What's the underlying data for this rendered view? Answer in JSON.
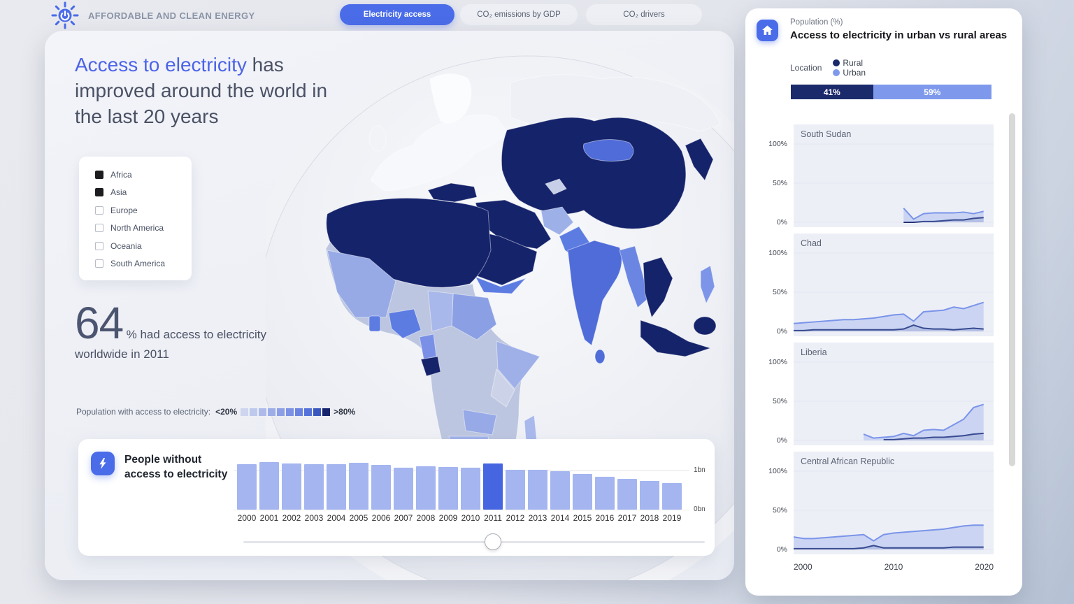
{
  "header": {
    "logo_icon": "sun-power-icon",
    "app_title": "AFFORDABLE AND CLEAN ENERGY",
    "tabs": [
      {
        "label": "Electricity access",
        "active": true
      },
      {
        "label": "CO₂ emissions by GDP",
        "active": false
      },
      {
        "label": "CO₂ drivers",
        "active": false
      }
    ]
  },
  "main": {
    "headline": {
      "highlight": "Access to electricity",
      "rest": " has improved around the world in the last 20 years"
    },
    "continent_filter": {
      "items": [
        {
          "label": "Africa",
          "checked": true
        },
        {
          "label": "Asia",
          "checked": true
        },
        {
          "label": "Europe",
          "checked": false
        },
        {
          "label": "North America",
          "checked": false
        },
        {
          "label": "Oceania",
          "checked": false
        },
        {
          "label": "South America",
          "checked": false
        }
      ]
    },
    "stat": {
      "value": "64",
      "suffix": "% had access to electricity",
      "line2": "worldwide in 2011"
    },
    "color_scale": {
      "label": "Population with access to electricity:",
      "min_label": "<20%",
      "max_label": ">80%",
      "colors": [
        "#ced5ee",
        "#bec9ec",
        "#aebbea",
        "#9dade8",
        "#8c9fe6",
        "#7b91e4",
        "#6a83e1",
        "#5472da",
        "#3a57c0",
        "#16246e"
      ]
    },
    "map": {
      "type": "choropleth-globe",
      "highlighted_continents": [
        "Africa",
        "Asia"
      ],
      "deselected_color": "#f4f5f9",
      "low_access_color": "#ced5ee",
      "high_access_color": "#101c60"
    }
  },
  "bottom_card": {
    "icon": "lightning-icon",
    "title_line1": "People without",
    "title_line2": "access to electricity",
    "slider": {
      "selected_year": "2011"
    }
  },
  "right_panel": {
    "home_icon": "home-icon",
    "subtitle": "Population (%)",
    "title": "Access to electricity in urban vs rural areas",
    "legend": {
      "label": "Location",
      "items": [
        {
          "label": "Rural",
          "color": "#1b2a6b"
        },
        {
          "label": "Urban",
          "color": "#7e99ec"
        }
      ]
    },
    "x_axis_labels": [
      "2000",
      "2010",
      "2020"
    ],
    "y_tick_labels": [
      "100%",
      "50%",
      "0%"
    ]
  },
  "chart_data": [
    {
      "type": "bar",
      "title": "People without access to electricity",
      "categories": [
        "2000",
        "2001",
        "2002",
        "2003",
        "2004",
        "2005",
        "2006",
        "2007",
        "2008",
        "2009",
        "2010",
        "2011",
        "2012",
        "2013",
        "2014",
        "2015",
        "2016",
        "2017",
        "2018",
        "2019"
      ],
      "values_bn": [
        1.16,
        1.21,
        1.18,
        1.16,
        1.16,
        1.2,
        1.14,
        1.07,
        1.11,
        1.09,
        1.07,
        1.18,
        1.02,
        1.02,
        0.98,
        0.91,
        0.84,
        0.79,
        0.73,
        0.68
      ],
      "highlighted_category": "2011",
      "y_axis_labels": [
        "1bn",
        "0bn"
      ],
      "ylim_bn": [
        0,
        1.25
      ],
      "bar_color": "#a4b5f0",
      "highlight_color": "#4566e0"
    },
    {
      "type": "bar",
      "subtype": "stacked-100",
      "title": "Access to electricity in urban vs rural areas",
      "series": [
        {
          "name": "Rural",
          "value_pct": 41,
          "color": "#1b2a6b"
        },
        {
          "name": "Urban",
          "value_pct": 59,
          "color": "#7e99ec"
        }
      ]
    },
    {
      "type": "area",
      "title": "South Sudan",
      "x_range": [
        2000,
        2020
      ],
      "ylim_pct": [
        0,
        100
      ],
      "series": [
        {
          "name": "Urban",
          "start_year": 2011,
          "values_pct": [
            18,
            4,
            11,
            12,
            12,
            12,
            13,
            11,
            14
          ]
        },
        {
          "name": "Rural",
          "start_year": 2011,
          "values_pct": [
            0,
            0,
            1,
            1,
            2,
            3,
            3,
            5,
            6
          ]
        }
      ]
    },
    {
      "type": "area",
      "title": "Chad",
      "x_range": [
        2000,
        2020
      ],
      "ylim_pct": [
        0,
        100
      ],
      "series": [
        {
          "name": "Urban",
          "start_year": 2000,
          "values_pct": [
            10,
            11,
            12,
            13,
            14,
            15,
            15,
            16,
            17,
            19,
            21,
            22,
            13,
            25,
            26,
            27,
            31,
            29,
            33,
            37
          ]
        },
        {
          "name": "Rural",
          "start_year": 2000,
          "values_pct": [
            1,
            1,
            2,
            2,
            2,
            2,
            2,
            2,
            2,
            2,
            2,
            3,
            8,
            4,
            3,
            3,
            2,
            3,
            4,
            3
          ]
        }
      ]
    },
    {
      "type": "area",
      "title": "Liberia",
      "x_range": [
        2000,
        2020
      ],
      "ylim_pct": [
        0,
        100
      ],
      "series": [
        {
          "name": "Urban",
          "start_year": 2007,
          "values_pct": [
            8,
            3,
            4,
            5,
            9,
            6,
            13,
            14,
            13,
            20,
            27,
            42,
            46
          ]
        },
        {
          "name": "Rural",
          "start_year": 2009,
          "values_pct": [
            1,
            1,
            2,
            3,
            3,
            4,
            4,
            5,
            6,
            8,
            9
          ]
        }
      ]
    },
    {
      "type": "area",
      "title": "Central African Republic",
      "x_range": [
        2000,
        2020
      ],
      "ylim_pct": [
        0,
        100
      ],
      "series": [
        {
          "name": "Urban",
          "start_year": 2000,
          "values_pct": [
            16,
            14,
            14,
            15,
            16,
            17,
            18,
            19,
            11,
            19,
            21,
            22,
            23,
            24,
            25,
            26,
            28,
            30,
            31,
            31
          ]
        },
        {
          "name": "Rural",
          "start_year": 2000,
          "values_pct": [
            1,
            1,
            1,
            1,
            1,
            1,
            1,
            2,
            5,
            2,
            2,
            2,
            2,
            2,
            2,
            2,
            3,
            3,
            3,
            3
          ]
        }
      ]
    }
  ]
}
